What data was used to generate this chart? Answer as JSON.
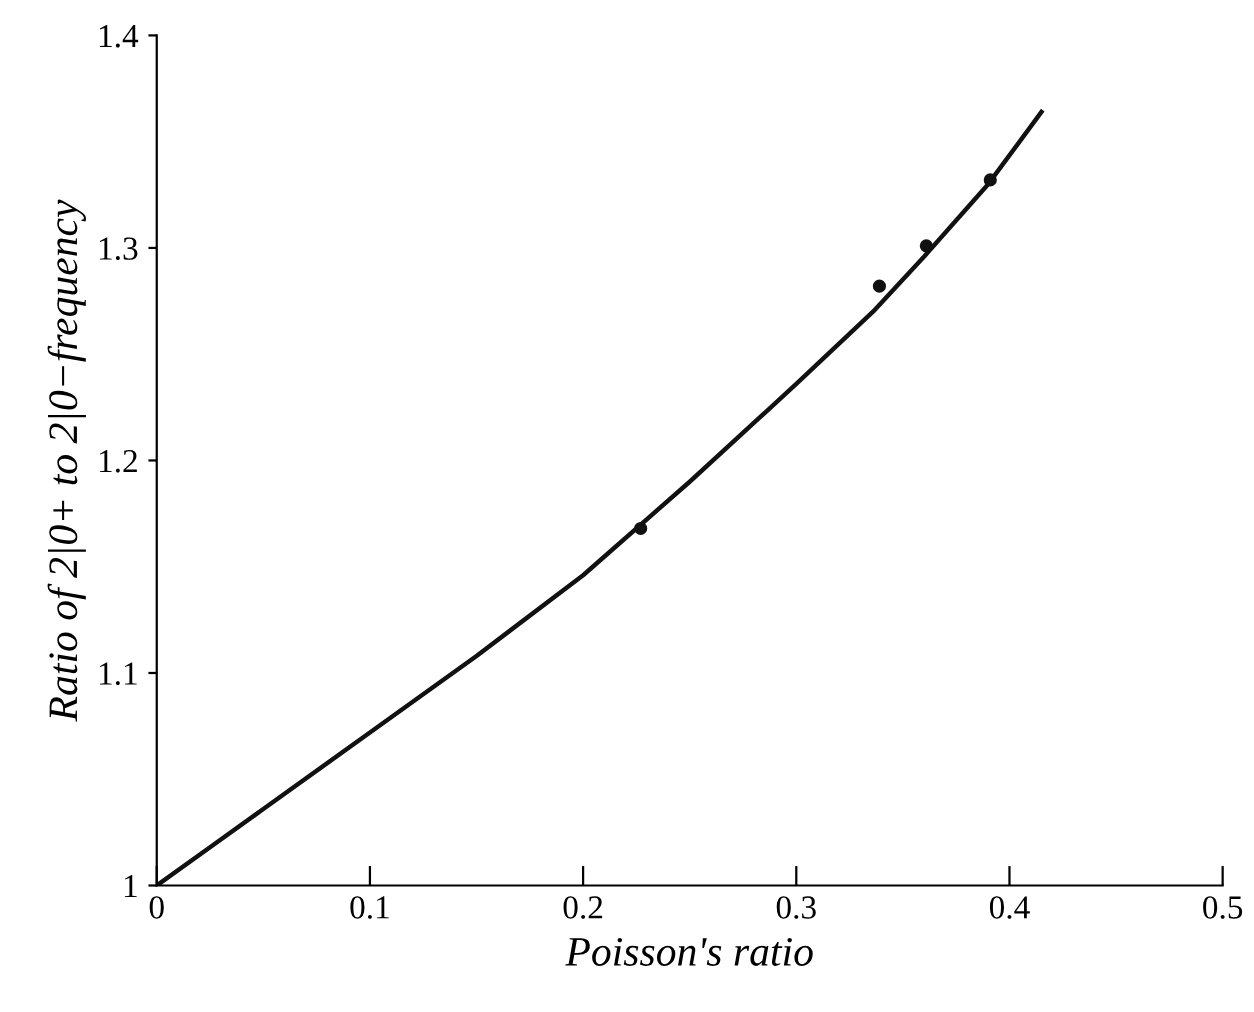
{
  "chart_data": {
    "type": "line",
    "xlabel": "Poisson's ratio",
    "ylabel": "Ratio of 2|0+ to 2|0−frequency",
    "xlim": [
      0,
      0.5
    ],
    "ylim": [
      1,
      1.4
    ],
    "xticks": [
      0,
      0.1,
      0.2,
      0.3,
      0.4,
      0.5
    ],
    "yticks": [
      1,
      1.1,
      1.2,
      1.3,
      1.4
    ],
    "grid": false,
    "series": [
      {
        "color": "#111111",
        "marker": "none",
        "line_style": "solid",
        "x": [
          0,
          0.025,
          0.05,
          0.1,
          0.15,
          0.2,
          0.25,
          0.3,
          0.336,
          0.36,
          0.39,
          0.415
        ],
        "values": [
          1,
          1.018,
          1.036,
          1.072,
          1.108,
          1.146,
          1.19,
          1.236,
          1.27,
          1.296,
          1.33,
          1.364
        ]
      },
      {
        "type": "scatter",
        "color": "#111111",
        "marker": "circle",
        "x": [
          0.227,
          0.339,
          0.361,
          0.391
        ],
        "values": [
          1.168,
          1.282,
          1.301,
          1.332
        ]
      }
    ]
  }
}
